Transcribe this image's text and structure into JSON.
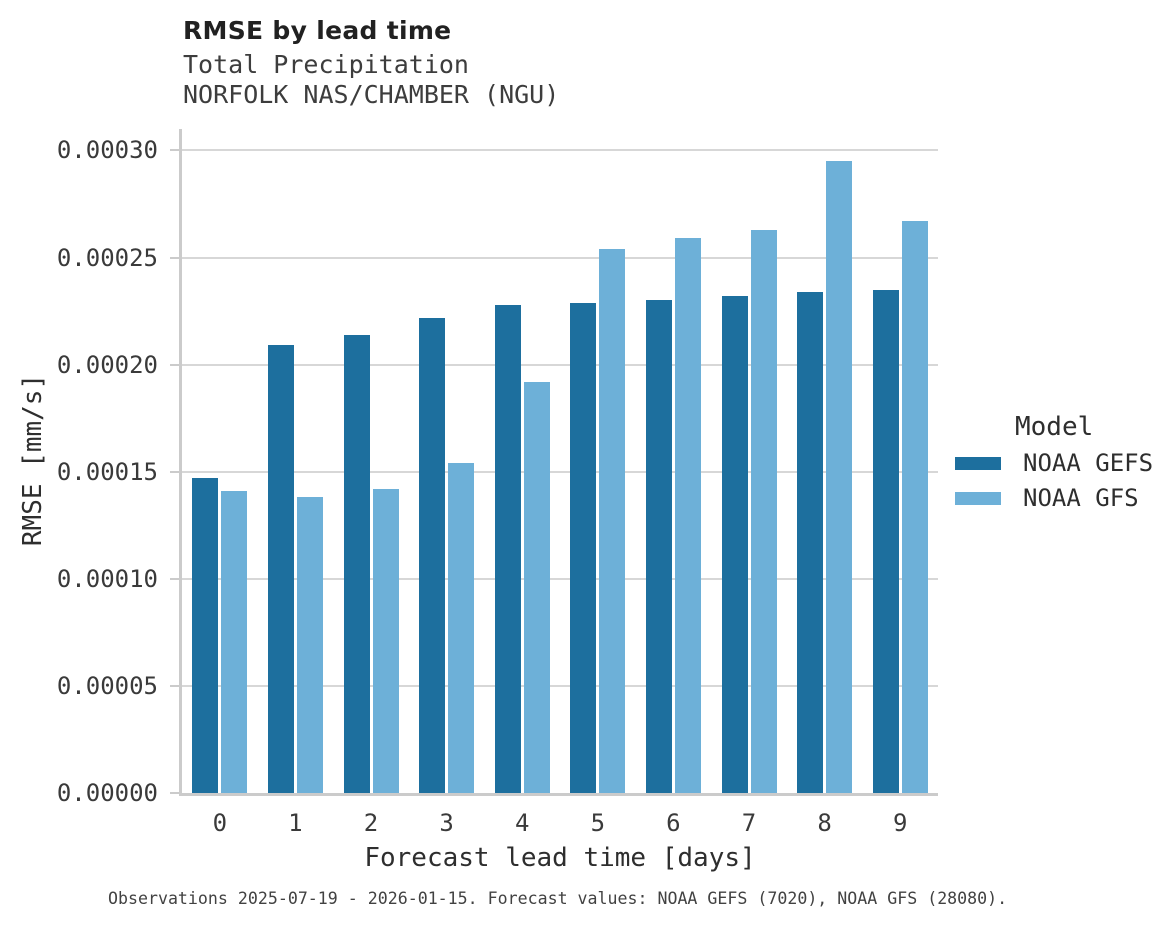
{
  "header": {
    "title": "RMSE by lead time",
    "subtitle_line1": "Total Precipitation",
    "subtitle_line2": "NORFOLK NAS/CHAMBER (NGU)"
  },
  "footer": {
    "note": "Observations 2025-07-19 - 2026-01-15. Forecast values: NOAA GEFS (7020), NOAA GFS (28080)."
  },
  "chart_data": {
    "type": "bar",
    "title": "RMSE by lead time",
    "subtitle": [
      "Total Precipitation",
      "NORFOLK NAS/CHAMBER (NGU)"
    ],
    "xlabel": "Forecast lead time [days]",
    "ylabel": "RMSE [mm/s]",
    "categories": [
      "0",
      "1",
      "2",
      "3",
      "4",
      "5",
      "6",
      "7",
      "8",
      "9"
    ],
    "ylim": [
      0,
      0.00031
    ],
    "grid": "horizontal",
    "legend_title": "Model",
    "legend_position": "right",
    "y_ticks": [
      {
        "value": 0.0,
        "label": "0.00000"
      },
      {
        "value": 5e-05,
        "label": "0.00005"
      },
      {
        "value": 0.0001,
        "label": "0.00010"
      },
      {
        "value": 0.00015,
        "label": "0.00015"
      },
      {
        "value": 0.0002,
        "label": "0.00020"
      },
      {
        "value": 0.00025,
        "label": "0.00025"
      },
      {
        "value": 0.0003,
        "label": "0.00030"
      }
    ],
    "series": [
      {
        "name": "NOAA GEFS",
        "color": "#1d6f9e",
        "values": [
          0.000147,
          0.000209,
          0.000214,
          0.000222,
          0.000228,
          0.000229,
          0.00023,
          0.000232,
          0.000234,
          0.000235
        ]
      },
      {
        "name": "NOAA GFS",
        "color": "#6db0d8",
        "values": [
          0.000141,
          0.000138,
          0.000142,
          0.000154,
          0.000192,
          0.000254,
          0.000259,
          0.000263,
          0.000295,
          0.000267
        ]
      }
    ]
  }
}
